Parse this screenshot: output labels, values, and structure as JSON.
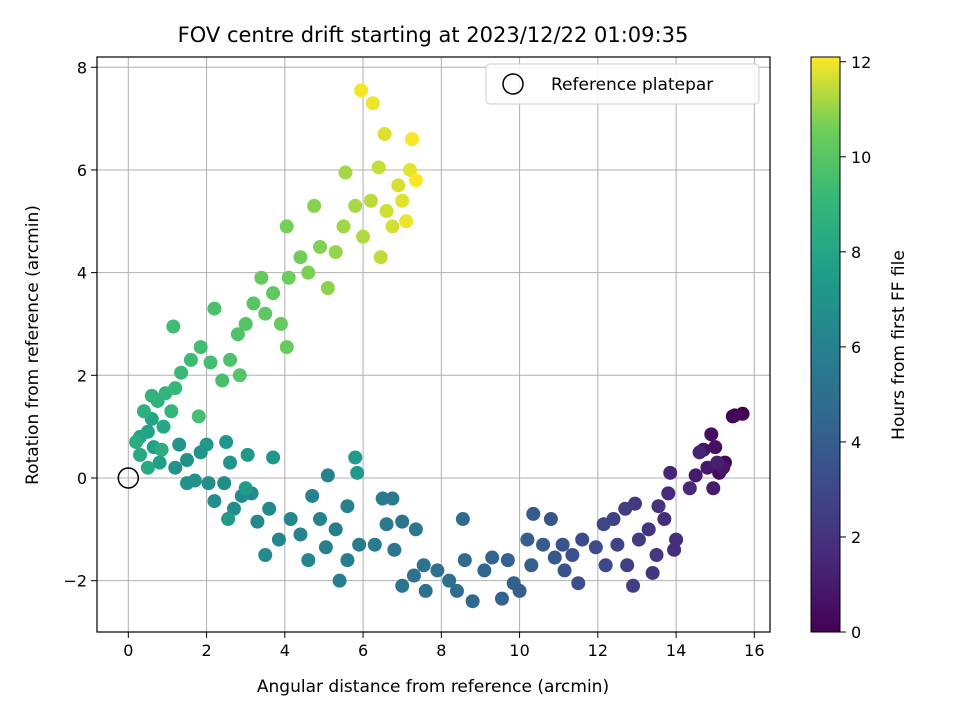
{
  "chart_data": {
    "type": "scatter",
    "title": "FOV centre drift starting at 2023/12/22 01:09:35",
    "xlabel": "Angular distance from reference (arcmin)",
    "ylabel": "Rotation from reference (arcmin)",
    "xlim": [
      -0.8,
      16.4
    ],
    "ylim": [
      -3.0,
      8.2
    ],
    "xticks": [
      0,
      2,
      4,
      6,
      8,
      10,
      12,
      14,
      16
    ],
    "yticks": [
      -2,
      0,
      2,
      4,
      6,
      8
    ],
    "grid": true,
    "legend": {
      "position": "top-right",
      "entries": [
        "Reference platepar"
      ]
    },
    "reference_point": {
      "x": 0,
      "y": 0,
      "label": "Reference platepar",
      "marker": "open-circle"
    },
    "colorbar": {
      "label": "Hours from first FF file",
      "range": [
        0,
        12.1
      ],
      "ticks": [
        0,
        2,
        4,
        6,
        8,
        10,
        12
      ],
      "colormap": "viridis"
    },
    "points": [
      [
        15.7,
        1.25,
        0.05
      ],
      [
        15.45,
        1.2,
        0.15
      ],
      [
        15.5,
        1.22,
        0.2
      ],
      [
        15.25,
        0.3,
        0.3
      ],
      [
        15.1,
        0.1,
        0.4
      ],
      [
        14.9,
        0.85,
        0.5
      ],
      [
        15.0,
        0.6,
        0.6
      ],
      [
        14.7,
        0.55,
        0.7
      ],
      [
        15.2,
        0.2,
        0.8
      ],
      [
        14.8,
        0.2,
        0.9
      ],
      [
        14.5,
        0.05,
        1.0
      ],
      [
        14.95,
        -0.2,
        1.1
      ],
      [
        15.05,
        0.3,
        1.2
      ],
      [
        14.6,
        0.5,
        1.3
      ],
      [
        13.85,
        0.1,
        1.4
      ],
      [
        14.35,
        -0.2,
        1.5
      ],
      [
        13.8,
        -0.3,
        1.6
      ],
      [
        14.0,
        -1.2,
        1.7
      ],
      [
        13.7,
        -0.8,
        1.8
      ],
      [
        13.95,
        -1.4,
        1.9
      ],
      [
        13.55,
        -0.55,
        2.0
      ],
      [
        13.3,
        -1.0,
        2.1
      ],
      [
        13.5,
        -1.5,
        2.2
      ],
      [
        13.4,
        -1.85,
        2.25
      ],
      [
        12.95,
        -0.5,
        2.3
      ],
      [
        13.05,
        -1.2,
        2.4
      ],
      [
        12.7,
        -0.6,
        2.5
      ],
      [
        12.9,
        -2.1,
        2.55
      ],
      [
        12.75,
        -1.7,
        2.6
      ],
      [
        12.4,
        -0.8,
        2.7
      ],
      [
        12.5,
        -1.3,
        2.8
      ],
      [
        12.15,
        -0.9,
        2.9
      ],
      [
        12.2,
        -1.7,
        3.0
      ],
      [
        11.95,
        -1.35,
        3.1
      ],
      [
        11.6,
        -1.2,
        3.2
      ],
      [
        11.5,
        -2.05,
        3.3
      ],
      [
        11.35,
        -1.5,
        3.4
      ],
      [
        11.1,
        -1.3,
        3.5
      ],
      [
        11.15,
        -1.8,
        3.55
      ],
      [
        10.8,
        -0.8,
        3.6
      ],
      [
        10.9,
        -1.55,
        3.7
      ],
      [
        10.35,
        -0.7,
        3.8
      ],
      [
        10.6,
        -1.3,
        3.9
      ],
      [
        10.2,
        -1.2,
        4.0
      ],
      [
        10.3,
        -1.7,
        4.05
      ],
      [
        10.0,
        -2.2,
        4.1
      ],
      [
        9.85,
        -2.05,
        4.15
      ],
      [
        9.7,
        -1.6,
        4.2
      ],
      [
        9.55,
        -2.35,
        4.3
      ],
      [
        9.3,
        -1.55,
        4.4
      ],
      [
        9.1,
        -1.8,
        4.5
      ],
      [
        8.8,
        -2.4,
        4.6
      ],
      [
        8.6,
        -1.6,
        4.7
      ],
      [
        8.4,
        -2.2,
        4.8
      ],
      [
        8.55,
        -0.8,
        4.85
      ],
      [
        8.2,
        -2.0,
        4.9
      ],
      [
        7.9,
        -1.8,
        5.0
      ],
      [
        7.6,
        -2.2,
        5.05
      ],
      [
        7.3,
        -1.9,
        5.1
      ],
      [
        7.55,
        -1.7,
        5.15
      ],
      [
        7.0,
        -2.1,
        5.2
      ],
      [
        6.8,
        -1.4,
        5.3
      ],
      [
        7.0,
        -0.85,
        5.35
      ],
      [
        7.35,
        -1.0,
        5.4
      ],
      [
        6.6,
        -0.9,
        5.5
      ],
      [
        6.5,
        -0.4,
        5.55
      ],
      [
        6.75,
        -0.4,
        5.6
      ],
      [
        6.3,
        -1.3,
        5.65
      ],
      [
        5.9,
        -1.3,
        5.7
      ],
      [
        5.6,
        -1.6,
        5.75
      ],
      [
        5.4,
        -2.0,
        5.8
      ],
      [
        5.05,
        -1.35,
        5.85
      ],
      [
        5.3,
        -1.0,
        5.9
      ],
      [
        5.6,
        -0.55,
        5.95
      ],
      [
        5.1,
        0.05,
        6.0
      ],
      [
        4.7,
        -0.35,
        6.05
      ],
      [
        4.9,
        -0.8,
        6.1
      ],
      [
        4.4,
        -1.1,
        6.15
      ],
      [
        4.6,
        -1.6,
        6.2
      ],
      [
        4.15,
        -0.8,
        6.25
      ],
      [
        3.85,
        -1.2,
        6.3
      ],
      [
        3.6,
        -0.6,
        6.35
      ],
      [
        3.3,
        -0.85,
        6.4
      ],
      [
        3.15,
        -0.3,
        6.45
      ],
      [
        3.5,
        -1.5,
        6.5
      ],
      [
        2.9,
        -0.35,
        6.55
      ],
      [
        2.7,
        -0.6,
        6.6
      ],
      [
        2.45,
        -0.1,
        6.65
      ],
      [
        2.2,
        -0.45,
        6.7
      ],
      [
        2.05,
        -0.1,
        6.75
      ],
      [
        1.7,
        -0.05,
        6.8
      ],
      [
        1.5,
        0.35,
        6.85
      ],
      [
        1.2,
        0.2,
        6.9
      ],
      [
        1.5,
        -0.1,
        6.95
      ],
      [
        1.3,
        0.65,
        7.0
      ],
      [
        1.85,
        0.5,
        7.05
      ],
      [
        2.6,
        0.3,
        7.1
      ],
      [
        2.5,
        0.7,
        7.15
      ],
      [
        3.7,
        0.4,
        7.2
      ],
      [
        3.05,
        0.45,
        7.25
      ],
      [
        2.0,
        0.65,
        7.3
      ],
      [
        5.8,
        0.4,
        7.35
      ],
      [
        5.85,
        0.1,
        7.4
      ],
      [
        2.55,
        -0.8,
        7.45
      ],
      [
        3.0,
        -0.2,
        7.5
      ],
      [
        0.8,
        0.3,
        7.6
      ],
      [
        0.65,
        0.6,
        7.7
      ],
      [
        0.5,
        0.9,
        7.8
      ],
      [
        0.3,
        0.8,
        7.9
      ],
      [
        0.6,
        1.15,
        8.0
      ],
      [
        0.9,
        1.0,
        8.1
      ],
      [
        0.3,
        0.45,
        8.2
      ],
      [
        0.5,
        0.2,
        8.3
      ],
      [
        0.2,
        0.7,
        8.4
      ],
      [
        0.85,
        0.55,
        8.5
      ],
      [
        0.4,
        1.3,
        8.6
      ],
      [
        0.75,
        1.5,
        8.7
      ],
      [
        0.6,
        1.6,
        8.8
      ],
      [
        0.95,
        1.65,
        8.9
      ],
      [
        1.1,
        1.3,
        9.0
      ],
      [
        1.2,
        1.75,
        9.1
      ],
      [
        1.35,
        2.05,
        9.2
      ],
      [
        1.6,
        2.3,
        9.3
      ],
      [
        1.15,
        2.95,
        9.35
      ],
      [
        1.85,
        2.55,
        9.4
      ],
      [
        2.1,
        2.25,
        9.5
      ],
      [
        1.8,
        1.2,
        9.55
      ],
      [
        2.4,
        1.9,
        9.6
      ],
      [
        2.2,
        3.3,
        9.65
      ],
      [
        2.6,
        2.3,
        9.7
      ],
      [
        2.8,
        2.8,
        9.8
      ],
      [
        3.0,
        3.0,
        9.9
      ],
      [
        2.85,
        2.0,
        9.95
      ],
      [
        3.2,
        3.4,
        10.0
      ],
      [
        3.5,
        3.2,
        10.1
      ],
      [
        3.7,
        3.6,
        10.2
      ],
      [
        3.4,
        3.9,
        10.3
      ],
      [
        3.9,
        3.0,
        10.35
      ],
      [
        4.05,
        2.55,
        10.4
      ],
      [
        4.1,
        3.9,
        10.5
      ],
      [
        4.4,
        4.3,
        10.6
      ],
      [
        4.05,
        4.9,
        10.65
      ],
      [
        4.6,
        4.0,
        10.7
      ],
      [
        4.9,
        4.5,
        10.8
      ],
      [
        4.75,
        5.3,
        10.85
      ],
      [
        5.1,
        3.7,
        10.9
      ],
      [
        5.3,
        4.4,
        11.0
      ],
      [
        5.5,
        4.9,
        11.1
      ],
      [
        5.55,
        5.95,
        11.15
      ],
      [
        5.8,
        5.3,
        11.2
      ],
      [
        6.0,
        4.7,
        11.3
      ],
      [
        6.2,
        5.4,
        11.4
      ],
      [
        6.45,
        4.3,
        11.45
      ],
      [
        6.4,
        6.05,
        11.5
      ],
      [
        6.6,
        5.2,
        11.6
      ],
      [
        6.75,
        4.9,
        11.65
      ],
      [
        6.9,
        5.7,
        11.7
      ],
      [
        6.55,
        6.7,
        11.75
      ],
      [
        7.0,
        5.4,
        11.8
      ],
      [
        7.2,
        6.0,
        11.85
      ],
      [
        7.1,
        5.0,
        11.9
      ],
      [
        6.25,
        7.3,
        11.95
      ],
      [
        5.95,
        7.55,
        12.0
      ],
      [
        7.25,
        6.6,
        12.05
      ],
      [
        7.35,
        5.8,
        12.1
      ]
    ]
  }
}
